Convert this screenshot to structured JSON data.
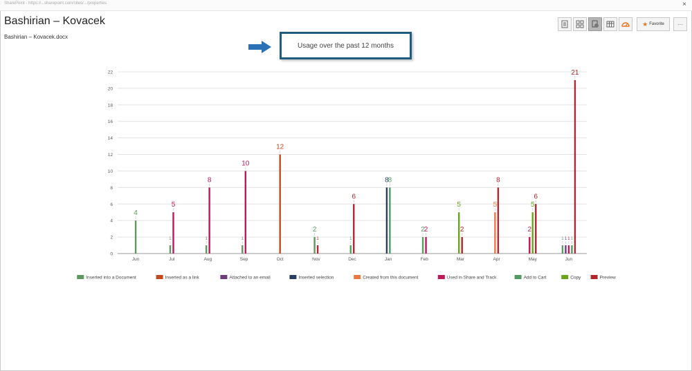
{
  "browser": {
    "url": "SharePoint - https://...sharepoint.com/sites/.../properties",
    "close_label": "×"
  },
  "document": {
    "title": "Bashirian – Kovacek",
    "filename": "Bashirian – Kovacek.docx"
  },
  "toolbar": {
    "buttons": [
      {
        "name": "details-view-button",
        "icon": "document-icon"
      },
      {
        "name": "tiles-view-button",
        "icon": "grid-icon"
      },
      {
        "name": "usage-view-button",
        "icon": "usage-icon"
      },
      {
        "name": "table-view-button",
        "icon": "table-icon"
      },
      {
        "name": "analytics-view-button",
        "icon": "gauge-icon"
      }
    ],
    "favorite_label": "Favorite",
    "more_label": "···",
    "accent": "#e87722"
  },
  "callout": {
    "text": "Usage over the past 12 months",
    "border_color": "#1f5b7f",
    "arrow_color": "#2a72b5"
  },
  "chart_data": {
    "type": "bar",
    "categories": [
      "Jun",
      "Jul",
      "Aug",
      "Sep",
      "Oct",
      "Nov",
      "Dec",
      "Jan",
      "Feb",
      "Mar",
      "Apr",
      "May",
      "Jun"
    ],
    "ylim": [
      0,
      22
    ],
    "yticks": [
      0,
      2,
      4,
      6,
      8,
      10,
      12,
      14,
      16,
      18,
      20,
      22
    ],
    "grid": true,
    "legend_position": "bottom",
    "series": [
      {
        "name": "Inserted into a Document",
        "color": "#5e9a5e",
        "values": [
          4,
          1,
          1,
          1,
          0,
          2,
          1,
          0,
          2,
          0,
          0,
          0,
          1
        ]
      },
      {
        "name": "Inserted as a link",
        "color": "#c14a1e",
        "values": [
          0,
          0,
          0,
          0,
          12,
          0,
          0,
          0,
          0,
          0,
          0,
          0,
          0
        ]
      },
      {
        "name": "Attached to an email",
        "color": "#6e3d79",
        "values": [
          0,
          0,
          0,
          0,
          0,
          0,
          0,
          0,
          0,
          0,
          0,
          0,
          1
        ]
      },
      {
        "name": "Inserted selection",
        "color": "#2a3f5f",
        "values": [
          0,
          0,
          0,
          0,
          0,
          0,
          0,
          8,
          0,
          0,
          0,
          0,
          0
        ]
      },
      {
        "name": "Created from this document",
        "color": "#ea7843",
        "values": [
          0,
          0,
          0,
          0,
          0,
          0,
          0,
          0,
          0,
          0,
          5,
          0,
          0
        ]
      },
      {
        "name": "Used in Share and Track",
        "color": "#c0175b",
        "values": [
          0,
          5,
          8,
          10,
          0,
          0,
          0,
          0,
          2,
          0,
          0,
          2,
          1
        ]
      },
      {
        "name": "Add to Cart",
        "color": "#4f9a62",
        "values": [
          0,
          0,
          0,
          0,
          0,
          0,
          0,
          8,
          0,
          0,
          0,
          0,
          1
        ]
      },
      {
        "name": "Copy",
        "color": "#69a517",
        "values": [
          0,
          0,
          0,
          0,
          0,
          0,
          0,
          0,
          0,
          5,
          0,
          5,
          0
        ]
      },
      {
        "name": "Preview",
        "color": "#b3262c",
        "values": [
          0,
          0,
          0,
          0,
          0,
          1,
          6,
          0,
          0,
          2,
          8,
          6,
          21
        ]
      }
    ]
  }
}
